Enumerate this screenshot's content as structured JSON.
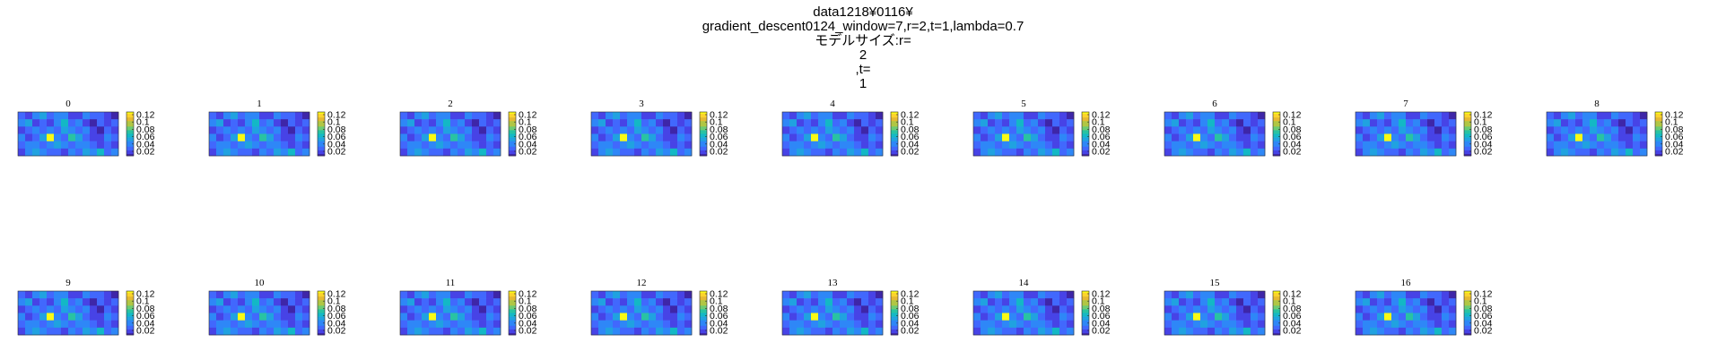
{
  "title_lines": [
    "data1218¥0116¥",
    "gradient_descent0124_window=7,r=2,t=1,lambda=0.7",
    "モデルサイズ:r=",
    "2",
    ",t=",
    "1"
  ],
  "colors": {
    "colormap": [
      "#3e26a8",
      "#4743e6",
      "#4168fd",
      "#2e87f7",
      "#20a2e0",
      "#13b8c5",
      "#29c3a2",
      "#6ccb74",
      "#b0c645",
      "#e6b931",
      "#fbd42a",
      "#f9fb15"
    ]
  },
  "chart_data": [
    {
      "type": "heatmap",
      "title": "0",
      "colorbar_ticks": [
        "0.12",
        "0.1",
        "0.08",
        "0.06",
        "0.04",
        "0.02"
      ]
    },
    {
      "type": "heatmap",
      "title": "1",
      "colorbar_ticks": [
        "0.12",
        "0.1",
        "0.08",
        "0.06",
        "0.04",
        "0.02"
      ]
    },
    {
      "type": "heatmap",
      "title": "2",
      "colorbar_ticks": [
        "0.12",
        "0.1",
        "0.08",
        "0.06",
        "0.04",
        "0.02"
      ]
    },
    {
      "type": "heatmap",
      "title": "3",
      "colorbar_ticks": [
        "0.12",
        "0.1",
        "0.08",
        "0.06",
        "0.04",
        "0.02"
      ]
    },
    {
      "type": "heatmap",
      "title": "4",
      "colorbar_ticks": [
        "0.12",
        "0.1",
        "0.08",
        "0.06",
        "0.04",
        "0.02"
      ]
    },
    {
      "type": "heatmap",
      "title": "5",
      "colorbar_ticks": [
        "0.12",
        "0.1",
        "0.08",
        "0.06",
        "0.04",
        "0.02"
      ]
    },
    {
      "type": "heatmap",
      "title": "6",
      "colorbar_ticks": [
        "0.12",
        "0.1",
        "0.08",
        "0.06",
        "0.04",
        "0.02"
      ]
    },
    {
      "type": "heatmap",
      "title": "7",
      "colorbar_ticks": [
        "0.12",
        "0.1",
        "0.08",
        "0.06",
        "0.04",
        "0.02"
      ]
    },
    {
      "type": "heatmap",
      "title": "8",
      "colorbar_ticks": [
        "0.12",
        "0.1",
        "0.08",
        "0.06",
        "0.04",
        "0.02"
      ]
    },
    {
      "type": "heatmap",
      "title": "9",
      "colorbar_ticks": [
        "0.12",
        "0.1",
        "0.08",
        "0.06",
        "0.04",
        "0.02"
      ]
    },
    {
      "type": "heatmap",
      "title": "10",
      "colorbar_ticks": [
        "0.12",
        "0.1",
        "0.08",
        "0.06",
        "0.04",
        "0.02"
      ]
    },
    {
      "type": "heatmap",
      "title": "11",
      "colorbar_ticks": [
        "0.12",
        "0.1",
        "0.08",
        "0.06",
        "0.04",
        "0.02"
      ]
    },
    {
      "type": "heatmap",
      "title": "12",
      "colorbar_ticks": [
        "0.12",
        "0.1",
        "0.08",
        "0.06",
        "0.04",
        "0.02"
      ]
    },
    {
      "type": "heatmap",
      "title": "13",
      "colorbar_ticks": [
        "0.12",
        "0.1",
        "0.08",
        "0.06",
        "0.04",
        "0.02"
      ]
    },
    {
      "type": "heatmap",
      "title": "14",
      "colorbar_ticks": [
        "0.12",
        "0.1",
        "0.08",
        "0.06",
        "0.04",
        "0.02"
      ]
    },
    {
      "type": "heatmap",
      "title": "15",
      "colorbar_ticks": [
        "0.12",
        "0.1",
        "0.08",
        "0.06",
        "0.04",
        "0.02"
      ]
    },
    {
      "type": "heatmap",
      "title": "16",
      "colorbar_ticks": [
        "0.12",
        "0.1",
        "0.08",
        "0.06",
        "0.04",
        "0.02"
      ]
    }
  ],
  "heatmap_values": [
    [
      0.04,
      0.03,
      0.05,
      0.06,
      0.04,
      0.05,
      0.05,
      0.03,
      0.03,
      0.05,
      0.04,
      0.04,
      0.03,
      0.02
    ],
    [
      0.05,
      0.06,
      0.03,
      0.04,
      0.03,
      0.05,
      0.07,
      0.04,
      0.05,
      0.03,
      0.02,
      0.04,
      0.03,
      0.04
    ],
    [
      0.03,
      0.04,
      0.05,
      0.04,
      0.05,
      0.04,
      0.06,
      0.05,
      0.04,
      0.05,
      0.03,
      0.02,
      0.04,
      0.03
    ],
    [
      0.05,
      0.03,
      0.04,
      0.06,
      0.13,
      0.05,
      0.04,
      0.08,
      0.06,
      0.04,
      0.03,
      0.03,
      0.05,
      0.04
    ],
    [
      0.04,
      0.05,
      0.05,
      0.04,
      0.05,
      0.06,
      0.05,
      0.04,
      0.05,
      0.05,
      0.04,
      0.03,
      0.04,
      0.03
    ],
    [
      0.03,
      0.05,
      0.06,
      0.05,
      0.04,
      0.04,
      0.03,
      0.05,
      0.04,
      0.06,
      0.05,
      0.07,
      0.04,
      0.05
    ]
  ]
}
